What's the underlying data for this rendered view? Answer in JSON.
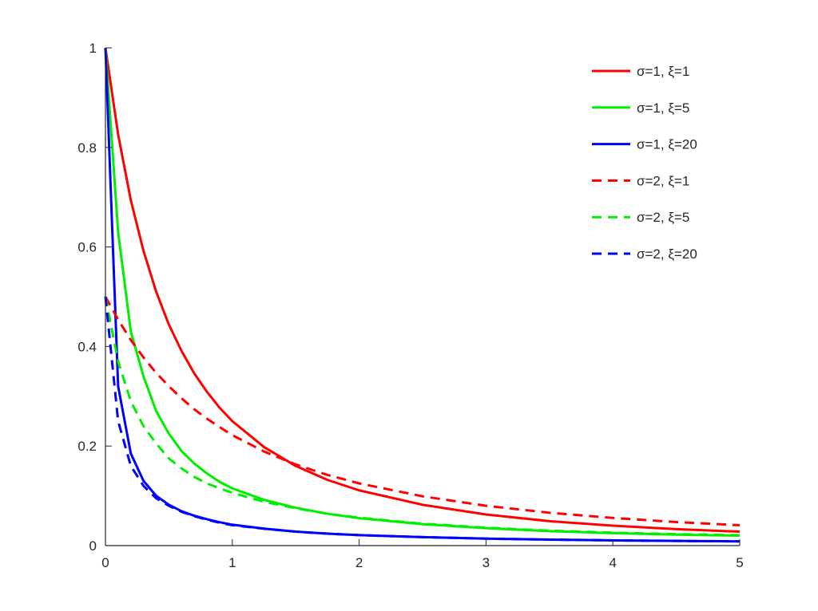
{
  "chart_data": {
    "type": "line",
    "title": "",
    "xlabel": "",
    "ylabel": "",
    "xlim": [
      0,
      5
    ],
    "ylim": [
      0,
      1
    ],
    "x_ticks": [
      "0",
      "1",
      "2",
      "3",
      "4",
      "5"
    ],
    "y_ticks": [
      "0",
      "0.2",
      "0.4",
      "0.6",
      "0.8",
      "1"
    ],
    "grid": false,
    "legend_position": "top-right",
    "x": [
      0,
      0.1,
      0.2,
      0.3,
      0.4,
      0.5,
      0.6,
      0.7,
      0.8,
      0.9,
      1.0,
      1.25,
      1.5,
      1.75,
      2.0,
      2.5,
      3.0,
      3.5,
      4.0,
      4.5,
      5.0
    ],
    "series": [
      {
        "name": "σ=1, ξ=1",
        "color": "#ff0000",
        "style": "solid",
        "values": [
          1.0,
          0.826,
          0.694,
          0.592,
          0.51,
          0.444,
          0.391,
          0.346,
          0.309,
          0.277,
          0.25,
          0.198,
          0.16,
          0.132,
          0.111,
          0.082,
          0.0625,
          0.049,
          0.04,
          0.033,
          0.028
        ]
      },
      {
        "name": "σ=1, ξ=5",
        "color": "#00ee00",
        "style": "solid",
        "values": [
          1.0,
          0.63,
          0.43,
          0.34,
          0.27,
          0.225,
          0.19,
          0.165,
          0.145,
          0.128,
          0.115,
          0.092,
          0.076,
          0.064,
          0.055,
          0.043,
          0.035,
          0.029,
          0.025,
          0.022,
          0.02
        ]
      },
      {
        "name": "σ=1, ξ=20",
        "color": "#0000ff",
        "style": "solid",
        "values": [
          1.0,
          0.32,
          0.185,
          0.13,
          0.1,
          0.082,
          0.069,
          0.06,
          0.053,
          0.047,
          0.042,
          0.034,
          0.028,
          0.024,
          0.021,
          0.017,
          0.014,
          0.012,
          0.0105,
          0.0094,
          0.0085
        ]
      },
      {
        "name": "σ=2, ξ=1",
        "color": "#ff0000",
        "style": "dashed",
        "values": [
          0.5,
          0.454,
          0.413,
          0.378,
          0.347,
          0.32,
          0.296,
          0.274,
          0.255,
          0.238,
          0.222,
          0.189,
          0.163,
          0.142,
          0.125,
          0.099,
          0.08,
          0.066,
          0.0556,
          0.0473,
          0.0408
        ]
      },
      {
        "name": "σ=2, ξ=5",
        "color": "#00ee00",
        "style": "dashed",
        "values": [
          0.5,
          0.37,
          0.29,
          0.24,
          0.205,
          0.175,
          0.155,
          0.138,
          0.125,
          0.115,
          0.106,
          0.088,
          0.075,
          0.064,
          0.056,
          0.044,
          0.036,
          0.03,
          0.026,
          0.023,
          0.021
        ]
      },
      {
        "name": "σ=2, ξ=20",
        "color": "#0000ff",
        "style": "dashed",
        "values": [
          0.5,
          0.25,
          0.16,
          0.12,
          0.095,
          0.08,
          0.068,
          0.059,
          0.052,
          0.046,
          0.041,
          0.034,
          0.028,
          0.024,
          0.021,
          0.017,
          0.014,
          0.012,
          0.0105,
          0.0094,
          0.0085
        ]
      }
    ]
  }
}
